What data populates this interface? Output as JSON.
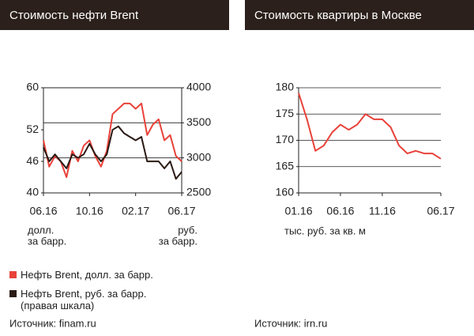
{
  "chart_data": [
    {
      "type": "line",
      "title": "Стоимость нефти Brent",
      "categories": [
        "06.16",
        null,
        null,
        null,
        null,
        null,
        null,
        null,
        "10.16",
        null,
        null,
        null,
        null,
        null,
        null,
        null,
        "02.17",
        null,
        null,
        null,
        null,
        null,
        null,
        null,
        "06.17"
      ],
      "series": [
        {
          "name": "Нефть Brent, долл. за барр.",
          "color": "#e8423a",
          "values": [
            50,
            45,
            47,
            46,
            43,
            48,
            46,
            49,
            50,
            47,
            45,
            48,
            55,
            56,
            57,
            57,
            56,
            57,
            51,
            53,
            54,
            50,
            51,
            47,
            46
          ]
        },
        {
          "name": "Нефть Brent, руб. за барр. (правая шкала)",
          "color": "#2a1a14",
          "axis": "y2",
          "values": [
            3150,
            2950,
            3050,
            2950,
            2850,
            3050,
            3000,
            3050,
            3200,
            3050,
            2950,
            3050,
            3400,
            3450,
            3350,
            3300,
            3250,
            3300,
            2950,
            2950,
            2950,
            2850,
            2950,
            2700,
            2800
          ]
        }
      ],
      "ylim": [
        40,
        60
      ],
      "yticks": [
        40,
        46,
        52,
        60
      ],
      "y2lim": [
        2500,
        4000
      ],
      "y2ticks": [
        2500,
        3000,
        3500,
        4000
      ],
      "grid": true,
      "y_unit": [
        "долл.",
        "за барр."
      ],
      "y2_unit": [
        "руб.",
        "за барр."
      ],
      "source": "Источник: finam.ru"
    },
    {
      "type": "line",
      "title": "Стоимость квартиры в Москве",
      "categories": [
        "01.16",
        null,
        null,
        null,
        null,
        "06.16",
        null,
        null,
        null,
        null,
        "11.16",
        null,
        null,
        null,
        null,
        null,
        null,
        "06.17"
      ],
      "series": [
        {
          "color": "#e8423a",
          "values": [
            179,
            174,
            168,
            169,
            171.5,
            173,
            172,
            173,
            175,
            174,
            174,
            172.5,
            169,
            167.5,
            168,
            167.5,
            167.5,
            166.5
          ]
        }
      ],
      "ylim": [
        160,
        180
      ],
      "yticks": [
        160,
        165,
        170,
        175,
        180
      ],
      "grid": true,
      "x_unit": "тыс. руб. за кв. м",
      "source": "Источник: irn.ru"
    }
  ]
}
